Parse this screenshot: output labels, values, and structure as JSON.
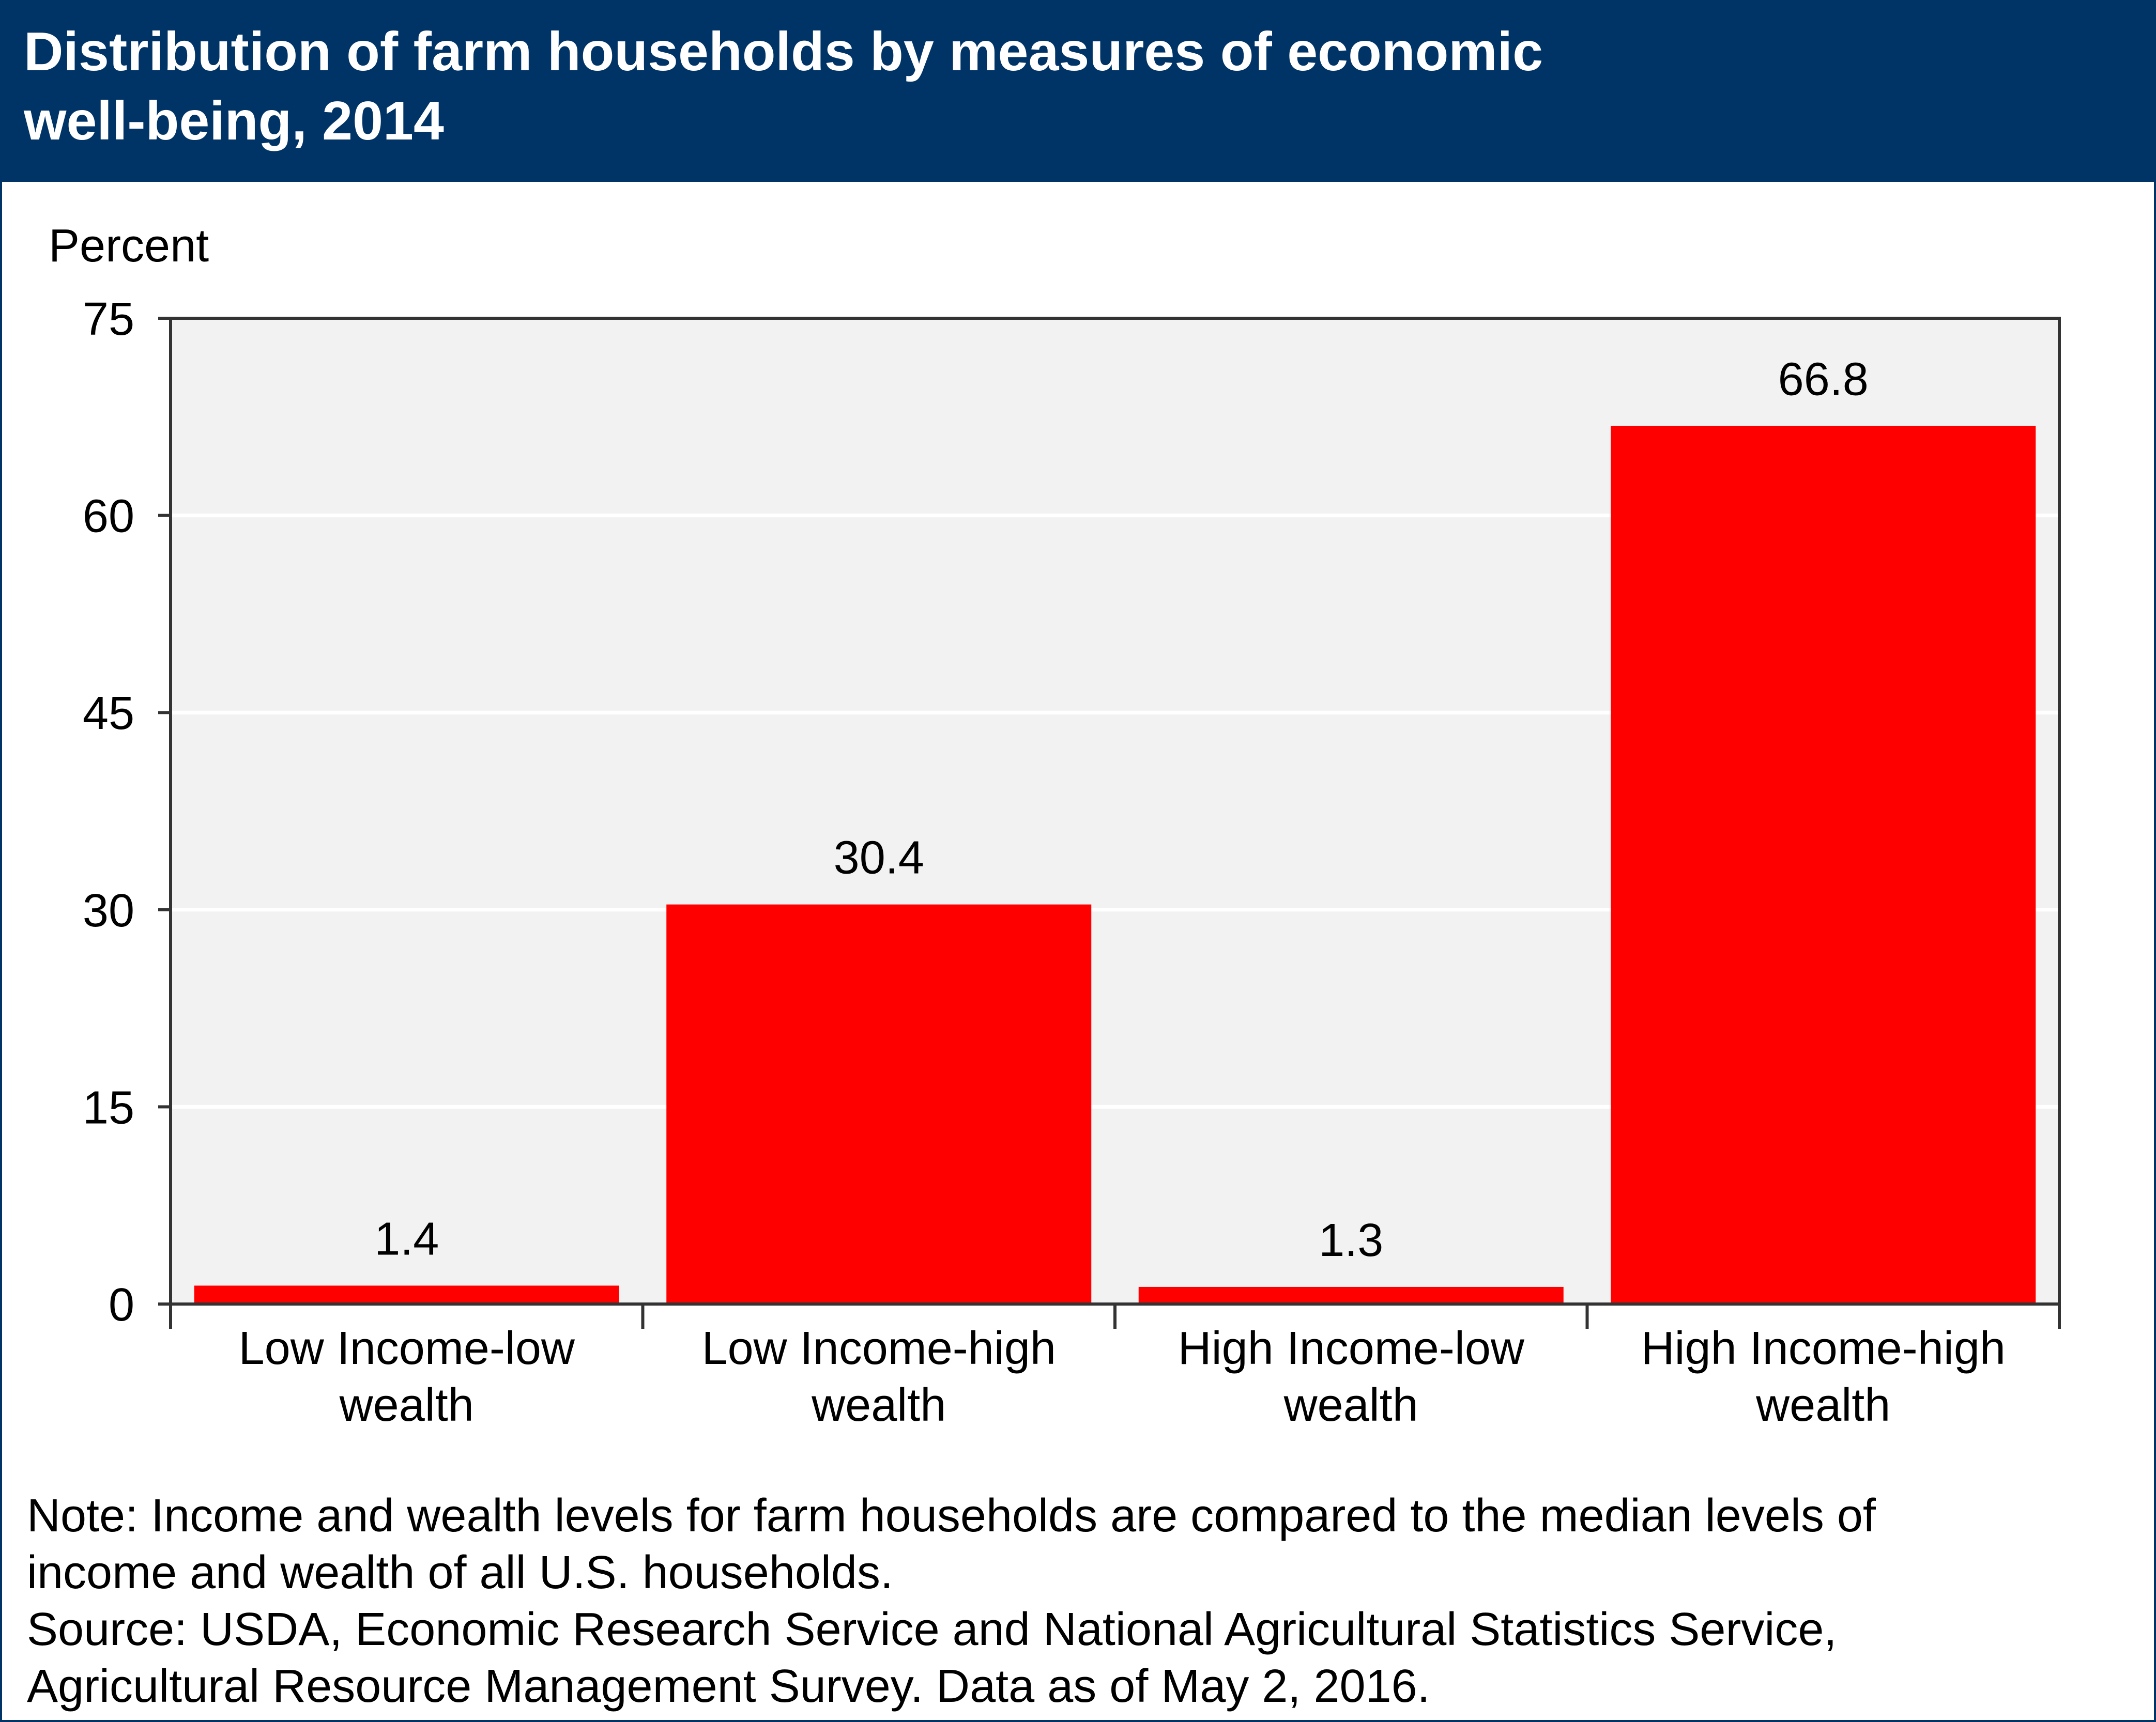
{
  "header": {
    "title_line_1": "Distribution of farm households by measures of economic",
    "title_line_2": "well-being, 2014",
    "background_color": "#003366"
  },
  "chart_data": {
    "type": "bar",
    "title": "Distribution of farm households by measures of economic well-being, 2014",
    "ylabel": "Percent",
    "xlabel": "",
    "ylim": [
      0,
      75
    ],
    "yticks": [
      0,
      15,
      30,
      45,
      60,
      75
    ],
    "grid": true,
    "categories": [
      [
        "Low Income-low",
        "wealth"
      ],
      [
        "Low Income-high",
        "wealth"
      ],
      [
        "High Income-low",
        "wealth"
      ],
      [
        "High Income-high",
        "wealth"
      ]
    ],
    "values": [
      1.4,
      30.4,
      1.3,
      66.8
    ],
    "value_labels": [
      "1.4",
      "30.4",
      "1.3",
      "66.8"
    ],
    "bar_color": "#ff0000",
    "plot_background": "#f2f2f2"
  },
  "footer": {
    "note_line_1": "Note: Income and wealth levels for farm households are compared to the median levels of",
    "note_line_2": "income and wealth of all U.S. households.",
    "source_line_1": "Source: USDA, Economic Research Service and National Agricultural Statistics Service,",
    "source_line_2": "Agricultural Resource Management Survey. Data as of May 2, 2016."
  }
}
